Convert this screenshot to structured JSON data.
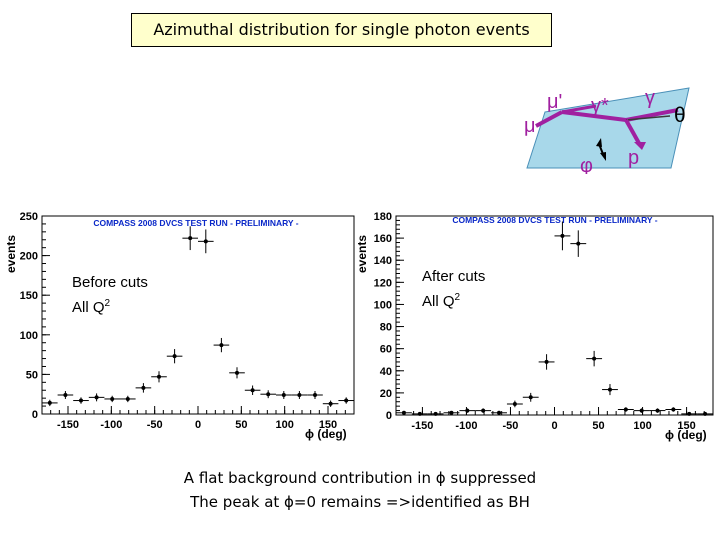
{
  "header": {
    "title": "Azimuthal distribution for single photon events"
  },
  "diagram": {
    "labels": {
      "mu": "μ",
      "mu_prime": "μ'",
      "gamma_star": "γ*",
      "gamma": "γ",
      "theta": "θ",
      "phi": "φ",
      "p": "p"
    },
    "accent_color": "#a020a0",
    "plane_color": "#a8d8ea"
  },
  "notes": {
    "before": {
      "line1": "Before cuts",
      "line2": "All Q",
      "sup": "2"
    },
    "after": {
      "line1": "After cuts",
      "line2": "All Q",
      "sup": "2"
    }
  },
  "footer": {
    "line1": "A flat background contribution in ϕ suppressed",
    "line2": "The peak at ϕ=0 remains =>identified as BH"
  },
  "chart_data": [
    {
      "type": "scatter",
      "title": "COMPASS 2008 DVCS TEST RUN - PRELIMINARY -",
      "xlabel": "ϕ (deg)",
      "ylabel": "events",
      "xlim": [
        -180,
        180
      ],
      "ylim": [
        0,
        250
      ],
      "xticks": [
        -150,
        -100,
        -50,
        0,
        50,
        100,
        150
      ],
      "yticks": [
        0,
        50,
        100,
        150,
        200,
        250
      ],
      "x": [
        -171,
        -153,
        -135,
        -117,
        -99,
        -81,
        -63,
        -45,
        -27,
        -9,
        9,
        27,
        45,
        63,
        81,
        99,
        117,
        135,
        153,
        171
      ],
      "y": [
        14,
        24,
        17,
        21,
        19,
        19,
        33,
        47,
        73,
        222,
        218,
        87,
        52,
        30,
        25,
        24,
        24,
        24,
        13,
        17
      ],
      "y_err": [
        4,
        5,
        4,
        5,
        4,
        4,
        6,
        7,
        9,
        15,
        15,
        9,
        7,
        6,
        5,
        5,
        5,
        5,
        4,
        4
      ]
    },
    {
      "type": "scatter",
      "title": "COMPASS 2008 DVCS TEST RUN - PRELIMINARY -",
      "xlabel": "ϕ (deg)",
      "ylabel": "events",
      "xlim": [
        -180,
        180
      ],
      "ylim": [
        0,
        180
      ],
      "xticks": [
        -150,
        -100,
        -50,
        0,
        50,
        100,
        150
      ],
      "yticks": [
        0,
        20,
        40,
        60,
        80,
        100,
        120,
        140,
        160,
        180
      ],
      "x": [
        -171,
        -153,
        -135,
        -117,
        -99,
        -81,
        -63,
        -45,
        -27,
        -9,
        9,
        27,
        45,
        63,
        81,
        99,
        117,
        135,
        153,
        171
      ],
      "y": [
        2,
        1,
        1,
        2,
        4,
        4,
        2,
        10,
        16,
        48,
        162,
        155,
        51,
        23,
        5,
        4,
        4,
        5,
        1,
        1
      ],
      "y_err": [
        1,
        1,
        1,
        1,
        2,
        2,
        1,
        3,
        4,
        7,
        13,
        12,
        7,
        5,
        2,
        2,
        2,
        2,
        1,
        1
      ]
    }
  ]
}
